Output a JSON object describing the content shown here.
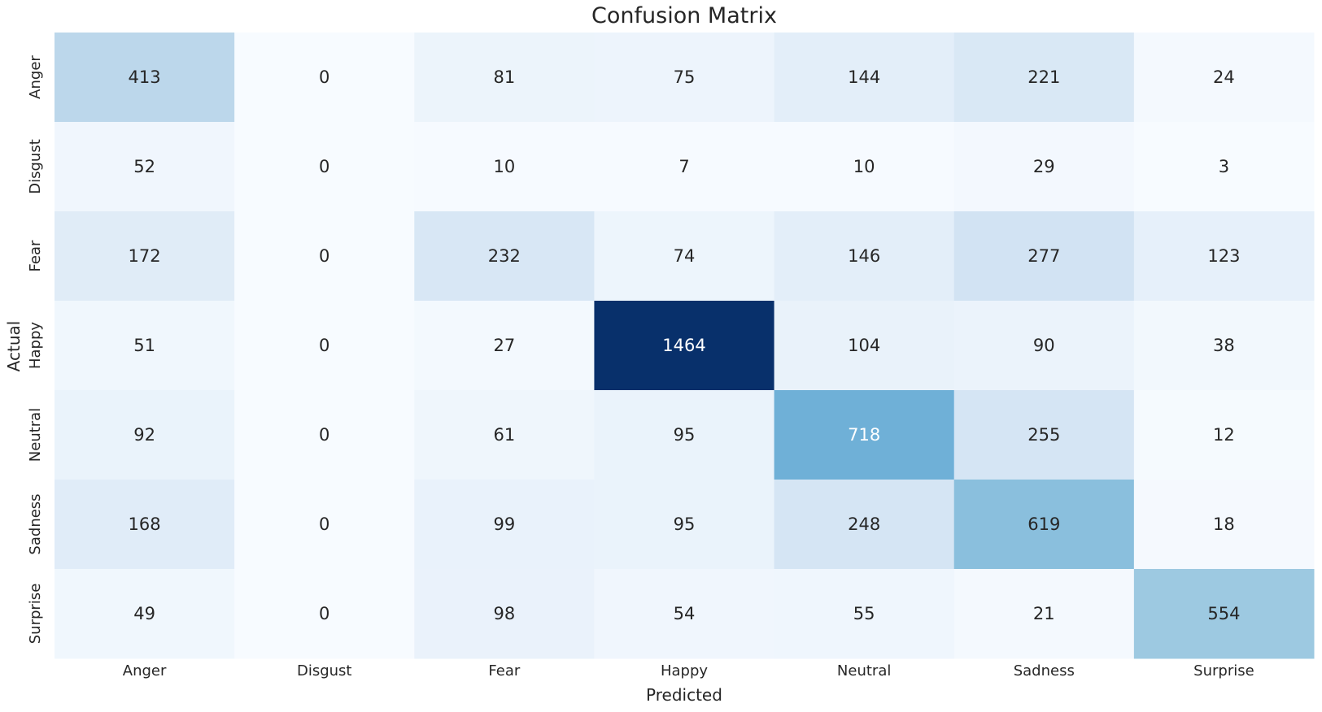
{
  "chart_data": {
    "type": "heatmap",
    "title": "Confusion Matrix",
    "xlabel": "Predicted",
    "ylabel": "Actual",
    "x_categories": [
      "Anger",
      "Disgust",
      "Fear",
      "Happy",
      "Neutral",
      "Sadness",
      "Surprise"
    ],
    "y_categories": [
      "Anger",
      "Disgust",
      "Fear",
      "Happy",
      "Neutral",
      "Sadness",
      "Surprise"
    ],
    "values": [
      [
        413,
        0,
        81,
        75,
        144,
        221,
        24
      ],
      [
        52,
        0,
        10,
        7,
        10,
        29,
        3
      ],
      [
        172,
        0,
        232,
        74,
        146,
        277,
        123
      ],
      [
        51,
        0,
        27,
        1464,
        104,
        90,
        38
      ],
      [
        92,
        0,
        61,
        95,
        718,
        255,
        12
      ],
      [
        168,
        0,
        99,
        95,
        248,
        619,
        18
      ],
      [
        49,
        0,
        98,
        54,
        55,
        21,
        554
      ]
    ],
    "colormap": "Blues",
    "vmin": 0,
    "vmax": 1464,
    "colorbar": false,
    "grid": false
  }
}
